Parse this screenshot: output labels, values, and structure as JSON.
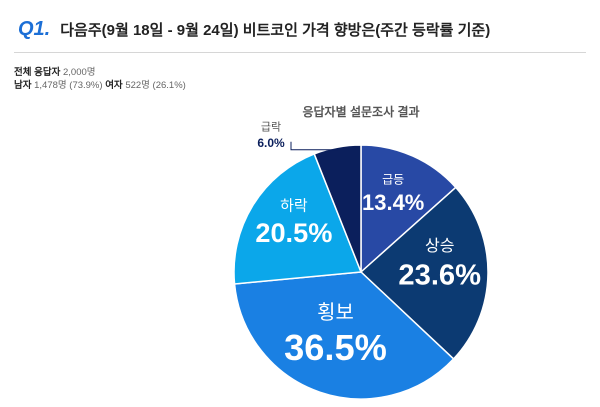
{
  "header": {
    "number": "Q1.",
    "question": "다음주(9월 18일 - 9월 24일)  비트코인 가격 향방은(주간 등락률 기준)"
  },
  "respondents": {
    "total_label": "전체 응답자",
    "total": "2,000명",
    "male_label": "남자",
    "male": "1,478명 (73.9%)",
    "female_label": "여자",
    "female": "522명 (26.1%)"
  },
  "chart_data": {
    "type": "pie",
    "title": "응답자별 설문조사 결과",
    "categories": [
      "급등",
      "상승",
      "횡보",
      "하락",
      "급락"
    ],
    "values": [
      13.4,
      23.6,
      36.5,
      20.5,
      6.0
    ],
    "value_labels": [
      "13.4%",
      "23.6%",
      "36.5%",
      "20.5%",
      "6.0%"
    ],
    "colors": [
      "#2849a5",
      "#0c3a72",
      "#1a80e3",
      "#0ba7ea",
      "#0b1f5c"
    ]
  }
}
